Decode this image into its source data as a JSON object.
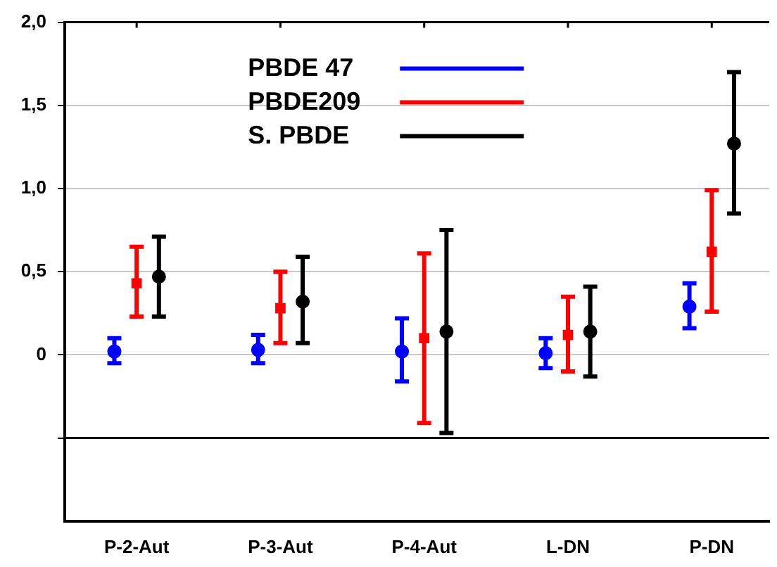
{
  "chart_data": {
    "type": "scatter",
    "categories": [
      "P-2-Aut",
      "P-3-Aut",
      "P-4-Aut",
      "L-DN",
      "P-DN"
    ],
    "series": [
      {
        "name": "PBDE 47",
        "color": "#0000ff",
        "marker": "circle",
        "values": [
          0.02,
          0.03,
          0.02,
          0.01,
          0.29
        ],
        "errors": [
          [
            -0.05,
            0.1
          ],
          [
            -0.05,
            0.12
          ],
          [
            -0.16,
            0.22
          ],
          [
            -0.08,
            0.1
          ],
          [
            0.16,
            0.43
          ]
        ]
      },
      {
        "name": "PBDE209",
        "color": "#ff0000",
        "marker": "square",
        "values": [
          0.43,
          0.28,
          0.1,
          0.12,
          0.62
        ],
        "errors": [
          [
            0.23,
            0.65
          ],
          [
            0.07,
            0.5
          ],
          [
            -0.41,
            0.61
          ],
          [
            -0.1,
            0.35
          ],
          [
            0.26,
            0.99
          ]
        ]
      },
      {
        "name": "S. PBDE",
        "color": "#000000",
        "marker": "circle",
        "values": [
          0.47,
          0.32,
          0.14,
          0.14,
          1.27
        ],
        "errors": [
          [
            0.23,
            0.71
          ],
          [
            0.07,
            0.59
          ],
          [
            -0.47,
            0.75
          ],
          [
            -0.13,
            0.41
          ],
          [
            0.85,
            1.7
          ]
        ]
      }
    ],
    "ylim": [
      -1,
      2
    ],
    "yticks": [
      {
        "value": -0.5,
        "label": null
      },
      0,
      {
        "value": 0.5,
        "label": "0,5"
      },
      {
        "value": 1,
        "label": "1,0"
      },
      {
        "value": 1.5,
        "label": "1,5"
      },
      {
        "value": 2,
        "label": "2,0"
      }
    ],
    "ref_lines": [
      {
        "axis": "y",
        "value": -0.5,
        "color": "#000000"
      }
    ],
    "grid": "y",
    "legend": "top"
  }
}
